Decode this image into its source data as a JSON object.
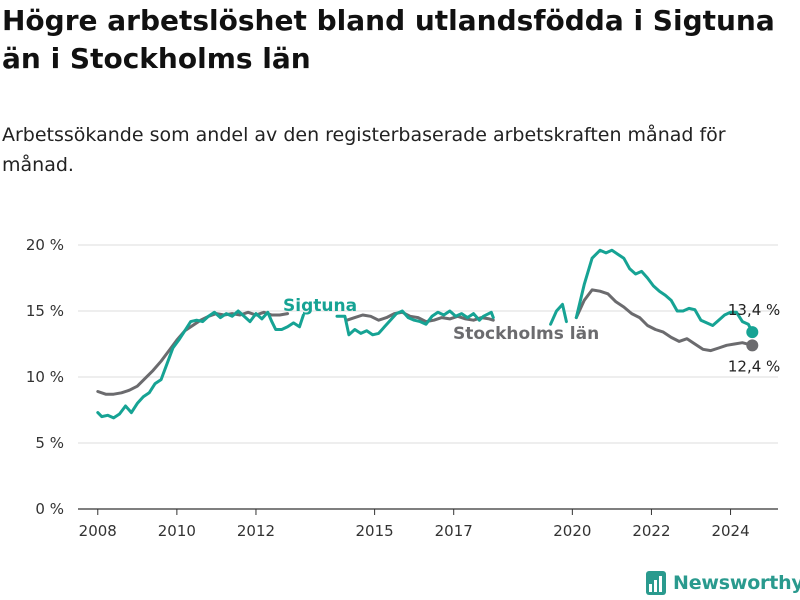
{
  "header": {
    "title": "Högre arbetslöshet bland utlandsfödda i Sigtuna än i Stockholms län",
    "subtitle": "Arbetssökande som andel av den registerbaserade arbetskraften månad för månad."
  },
  "brand": {
    "name": "Newsworthy",
    "color": "#2a9a8e"
  },
  "chart_data": {
    "type": "line",
    "title": "Högre arbetslöshet bland utlandsfödda i Sigtuna än i Stockholms län",
    "subtitle": "Arbetssökande som andel av den registerbaserade arbetskraften månad för månad.",
    "xlabel": "",
    "ylabel": "",
    "ylim": [
      0,
      20
    ],
    "xlim": [
      2007.5,
      2025.2
    ],
    "y_ticks": [
      0,
      5,
      10,
      15,
      20
    ],
    "y_tick_labels": [
      "0 %",
      "5 %",
      "10 %",
      "15 %",
      "20 %"
    ],
    "x_ticks": [
      2008,
      2010,
      2012,
      2015,
      2017,
      2020,
      2022,
      2024
    ],
    "x_tick_labels": [
      "2008",
      "2010",
      "2012",
      "2015",
      "2017",
      "2020",
      "2022",
      "2024"
    ],
    "grid": true,
    "series": [
      {
        "name": "Sigtuna",
        "color": "#16a394",
        "end_label": "13,4 %",
        "segments": [
          [
            [
              2008.0,
              7.3
            ],
            [
              2008.1,
              7.0
            ],
            [
              2008.25,
              7.1
            ],
            [
              2008.4,
              6.9
            ],
            [
              2008.55,
              7.2
            ],
            [
              2008.7,
              7.8
            ],
            [
              2008.85,
              7.3
            ],
            [
              2009.0,
              8.0
            ],
            [
              2009.15,
              8.5
            ],
            [
              2009.3,
              8.8
            ],
            [
              2009.45,
              9.5
            ],
            [
              2009.6,
              9.8
            ],
            [
              2009.75,
              11.0
            ],
            [
              2009.9,
              12.2
            ],
            [
              2010.05,
              12.8
            ],
            [
              2010.2,
              13.5
            ],
            [
              2010.35,
              14.2
            ],
            [
              2010.5,
              14.3
            ],
            [
              2010.65,
              14.2
            ],
            [
              2010.8,
              14.6
            ],
            [
              2010.95,
              14.9
            ],
            [
              2011.1,
              14.5
            ],
            [
              2011.25,
              14.8
            ],
            [
              2011.4,
              14.6
            ],
            [
              2011.55,
              15.0
            ],
            [
              2011.7,
              14.6
            ],
            [
              2011.85,
              14.2
            ],
            [
              2012.0,
              14.8
            ],
            [
              2012.15,
              14.4
            ],
            [
              2012.3,
              14.9
            ],
            [
              2012.4,
              14.2
            ],
            [
              2012.5,
              13.6
            ],
            [
              2012.65,
              13.6
            ],
            [
              2012.8,
              13.8
            ],
            [
              2012.95,
              14.1
            ],
            [
              2013.1,
              13.8
            ],
            [
              2013.2,
              14.7
            ]
          ],
          [
            [
              2014.05,
              14.6
            ],
            [
              2014.25,
              14.6
            ],
            [
              2014.35,
              13.2
            ],
            [
              2014.5,
              13.6
            ],
            [
              2014.65,
              13.3
            ],
            [
              2014.8,
              13.5
            ],
            [
              2014.95,
              13.2
            ],
            [
              2015.1,
              13.3
            ],
            [
              2015.25,
              13.8
            ],
            [
              2015.4,
              14.3
            ],
            [
              2015.55,
              14.8
            ],
            [
              2015.7,
              15.0
            ],
            [
              2015.85,
              14.5
            ],
            [
              2016.0,
              14.3
            ],
            [
              2016.15,
              14.2
            ],
            [
              2016.3,
              14.0
            ],
            [
              2016.45,
              14.6
            ],
            [
              2016.6,
              14.9
            ],
            [
              2016.75,
              14.7
            ],
            [
              2016.9,
              15.0
            ],
            [
              2017.05,
              14.6
            ],
            [
              2017.2,
              14.8
            ],
            [
              2017.35,
              14.5
            ],
            [
              2017.5,
              14.8
            ],
            [
              2017.65,
              14.3
            ],
            [
              2017.75,
              14.6
            ],
            [
              2017.95,
              14.9
            ],
            [
              2018.0,
              14.5
            ]
          ],
          [
            [
              2019.45,
              14.0
            ],
            [
              2019.6,
              15.0
            ],
            [
              2019.75,
              15.5
            ],
            [
              2019.85,
              14.2
            ]
          ],
          [
            [
              2020.1,
              14.5
            ],
            [
              2020.3,
              17.0
            ],
            [
              2020.5,
              19.0
            ],
            [
              2020.7,
              19.6
            ],
            [
              2020.85,
              19.4
            ],
            [
              2021.0,
              19.6
            ],
            [
              2021.15,
              19.3
            ],
            [
              2021.3,
              19.0
            ],
            [
              2021.45,
              18.2
            ],
            [
              2021.6,
              17.8
            ],
            [
              2021.75,
              18.0
            ],
            [
              2021.9,
              17.5
            ],
            [
              2022.05,
              16.9
            ],
            [
              2022.2,
              16.5
            ],
            [
              2022.35,
              16.2
            ],
            [
              2022.5,
              15.8
            ],
            [
              2022.65,
              15.0
            ],
            [
              2022.8,
              15.0
            ],
            [
              2022.95,
              15.2
            ],
            [
              2023.1,
              15.1
            ],
            [
              2023.25,
              14.3
            ],
            [
              2023.4,
              14.1
            ],
            [
              2023.55,
              13.9
            ],
            [
              2023.7,
              14.3
            ],
            [
              2023.85,
              14.7
            ],
            [
              2024.0,
              14.9
            ],
            [
              2024.15,
              14.9
            ],
            [
              2024.3,
              14.2
            ],
            [
              2024.45,
              14.0
            ],
            [
              2024.55,
              13.4
            ]
          ]
        ]
      },
      {
        "name": "Stockholms län",
        "color": "#6b6b6e",
        "end_label": "12,4 %",
        "segments": [
          [
            [
              2008.0,
              8.9
            ],
            [
              2008.2,
              8.7
            ],
            [
              2008.4,
              8.7
            ],
            [
              2008.6,
              8.8
            ],
            [
              2008.8,
              9.0
            ],
            [
              2009.0,
              9.3
            ],
            [
              2009.2,
              9.9
            ],
            [
              2009.4,
              10.5
            ],
            [
              2009.6,
              11.2
            ],
            [
              2009.8,
              12.0
            ],
            [
              2010.0,
              12.8
            ],
            [
              2010.2,
              13.5
            ],
            [
              2010.4,
              13.9
            ],
            [
              2010.6,
              14.3
            ],
            [
              2010.8,
              14.6
            ],
            [
              2011.0,
              14.8
            ],
            [
              2011.2,
              14.7
            ],
            [
              2011.4,
              14.8
            ],
            [
              2011.6,
              14.7
            ],
            [
              2011.8,
              14.9
            ],
            [
              2012.0,
              14.7
            ],
            [
              2012.2,
              14.9
            ],
            [
              2012.4,
              14.7
            ],
            [
              2012.6,
              14.7
            ],
            [
              2012.8,
              14.8
            ]
          ],
          [
            [
              2014.3,
              14.3
            ],
            [
              2014.5,
              14.5
            ],
            [
              2014.7,
              14.7
            ],
            [
              2014.9,
              14.6
            ],
            [
              2015.1,
              14.3
            ],
            [
              2015.3,
              14.5
            ],
            [
              2015.5,
              14.8
            ],
            [
              2015.7,
              14.9
            ],
            [
              2015.9,
              14.6
            ],
            [
              2016.1,
              14.5
            ],
            [
              2016.3,
              14.2
            ],
            [
              2016.5,
              14.3
            ],
            [
              2016.7,
              14.5
            ],
            [
              2016.9,
              14.4
            ],
            [
              2017.1,
              14.6
            ],
            [
              2017.3,
              14.4
            ],
            [
              2017.5,
              14.3
            ],
            [
              2017.7,
              14.5
            ],
            [
              2017.9,
              14.4
            ],
            [
              2018.0,
              14.3
            ]
          ],
          [
            [
              2020.1,
              14.5
            ],
            [
              2020.3,
              15.8
            ],
            [
              2020.5,
              16.6
            ],
            [
              2020.7,
              16.5
            ],
            [
              2020.9,
              16.3
            ],
            [
              2021.1,
              15.7
            ],
            [
              2021.3,
              15.3
            ],
            [
              2021.5,
              14.8
            ],
            [
              2021.7,
              14.5
            ],
            [
              2021.9,
              13.9
            ],
            [
              2022.1,
              13.6
            ],
            [
              2022.3,
              13.4
            ],
            [
              2022.5,
              13.0
            ],
            [
              2022.7,
              12.7
            ],
            [
              2022.9,
              12.9
            ],
            [
              2023.1,
              12.5
            ],
            [
              2023.3,
              12.1
            ],
            [
              2023.5,
              12.0
            ],
            [
              2023.7,
              12.2
            ],
            [
              2023.9,
              12.4
            ],
            [
              2024.1,
              12.5
            ],
            [
              2024.3,
              12.6
            ],
            [
              2024.55,
              12.4
            ]
          ]
        ]
      }
    ]
  }
}
